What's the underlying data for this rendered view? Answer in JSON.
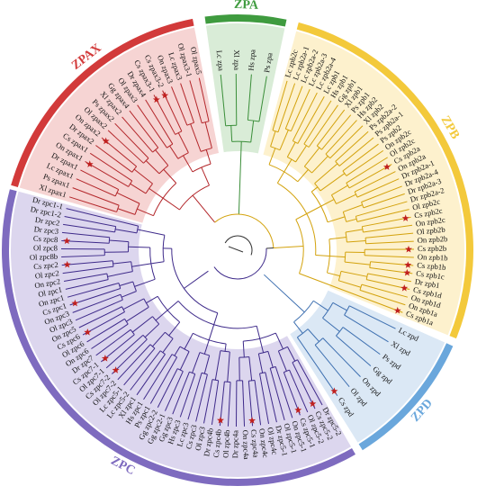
{
  "colors": {
    "ZPAX": "#d23a3a",
    "ZPA": "#3f9b3f",
    "ZPB": "#f3c93b",
    "ZPD": "#6aa7dc",
    "ZPC": "#7e6bbf",
    "ZPAX_bg": "#f6d4d3",
    "ZPA_bg": "#d9ecd7",
    "ZPB_bg": "#fdf1cd",
    "ZPD_bg": "#dbe8f5",
    "ZPC_bg": "#dcd6ee",
    "star": "#c0201f",
    "ZPAX_branch": "#b3262a",
    "ZPA_branch": "#3a8e39",
    "ZPB_branch": "#d3a20c",
    "ZPD_branch": "#3d6fb0",
    "ZPC_branch": "#3e2a8a",
    "center_branch": "#333333"
  },
  "clades": [
    {
      "key": "ZPAX",
      "label": "ZPAX"
    },
    {
      "key": "ZPA",
      "label": "ZPA"
    },
    {
      "key": "ZPB",
      "label": "ZPB"
    },
    {
      "key": "ZPD",
      "label": "ZPD"
    },
    {
      "key": "ZPC",
      "label": "ZPC"
    }
  ],
  "leaves": [
    {
      "label": "Xl zpax1",
      "clade": "ZPAX",
      "star": false
    },
    {
      "label": "Ps zpax1",
      "clade": "ZPAX",
      "star": false
    },
    {
      "label": "Lc zpax1",
      "clade": "ZPAX",
      "star": false
    },
    {
      "label": "Dr zpax1",
      "clade": "ZPAX",
      "star": false
    },
    {
      "label": "On zpax1",
      "clade": "ZPAX",
      "star": true
    },
    {
      "label": "Cs zpax1",
      "clade": "ZPAX",
      "star": false
    },
    {
      "label": "Dr zpax2",
      "clade": "ZPAX",
      "star": false
    },
    {
      "label": "On zpax2",
      "clade": "ZPAX",
      "star": true
    },
    {
      "label": "Ol zpax2",
      "clade": "ZPAX",
      "star": false
    },
    {
      "label": "Ps zpax2",
      "clade": "ZPAX",
      "star": false
    },
    {
      "label": "Xl zpax2",
      "clade": "ZPAX",
      "star": false
    },
    {
      "label": "Gg zpax4",
      "clade": "ZPAX",
      "star": false
    },
    {
      "label": "Ol zpax3",
      "clade": "ZPAX",
      "star": false
    },
    {
      "label": "Dr zpax4",
      "clade": "ZPAX",
      "star": false
    },
    {
      "label": "Cs zpax3-1",
      "clade": "ZPAX",
      "star": true
    },
    {
      "label": "Cs zpax3-2",
      "clade": "ZPAX",
      "star": true
    },
    {
      "label": "On zpax3",
      "clade": "ZPAX",
      "star": false
    },
    {
      "label": "Lc zpax3",
      "clade": "ZPAX",
      "star": false
    },
    {
      "label": "Ol zpax3-1",
      "clade": "ZPAX",
      "star": false
    },
    {
      "label": "Ol zpax5",
      "clade": "ZPAX",
      "star": false
    },
    {
      "label": "Lc zpa",
      "clade": "ZPA",
      "star": false
    },
    {
      "label": "Xl zpa",
      "clade": "ZPA",
      "star": false
    },
    {
      "label": "Hs zpa",
      "clade": "ZPA",
      "star": false
    },
    {
      "label": "Ps zpa",
      "clade": "ZPA",
      "star": false
    },
    {
      "label": "Lc zpb2c",
      "clade": "ZPB",
      "star": false
    },
    {
      "label": "Lc zpb2a-1",
      "clade": "ZPB",
      "star": false
    },
    {
      "label": "Lc zpb2a-2",
      "clade": "ZPB",
      "star": false
    },
    {
      "label": "Lc zpb2a-3",
      "clade": "ZPB",
      "star": false
    },
    {
      "label": "Lc zpb2a-4",
      "clade": "ZPB",
      "star": false
    },
    {
      "label": "Lc zpb1",
      "clade": "ZPB",
      "star": false
    },
    {
      "label": "Hs zpb1",
      "clade": "ZPB",
      "star": false
    },
    {
      "label": "Gg zpb1",
      "clade": "ZPB",
      "star": false
    },
    {
      "label": "Xl zpb1",
      "clade": "ZPB",
      "star": false
    },
    {
      "label": "Ps zpb1",
      "clade": "ZPB",
      "star": false
    },
    {
      "label": "Hs zpb2",
      "clade": "ZPB",
      "star": false
    },
    {
      "label": "Xl zpb2",
      "clade": "ZPB",
      "star": false
    },
    {
      "label": "Ps zpb2a-2",
      "clade": "ZPB",
      "star": false
    },
    {
      "label": "Ps zpb2a-1",
      "clade": "ZPB",
      "star": false
    },
    {
      "label": "Ps zpb2",
      "clade": "ZPB",
      "star": false
    },
    {
      "label": "On zpb2c",
      "clade": "ZPB",
      "star": false
    },
    {
      "label": "Ol zpb2c",
      "clade": "ZPB",
      "star": false
    },
    {
      "label": "Cs zpb2a",
      "clade": "ZPB",
      "star": true
    },
    {
      "label": "On zpb2a",
      "clade": "ZPB",
      "star": false
    },
    {
      "label": "Dr zpb2a-1",
      "clade": "ZPB",
      "star": false
    },
    {
      "label": "Dr zpb2a-4",
      "clade": "ZPB",
      "star": false
    },
    {
      "label": "Dr zpb2a-3",
      "clade": "ZPB",
      "star": false
    },
    {
      "label": "Dr zpb2a-2",
      "clade": "ZPB",
      "star": false
    },
    {
      "label": "Ol zpb2c",
      "clade": "ZPB",
      "star": false
    },
    {
      "label": "Cs zpb2c",
      "clade": "ZPB",
      "star": true
    },
    {
      "label": "On zpb2c",
      "clade": "ZPB",
      "star": false
    },
    {
      "label": "Ol zpb2b",
      "clade": "ZPB",
      "star": false
    },
    {
      "label": "On zpb2b",
      "clade": "ZPB",
      "star": false
    },
    {
      "label": "Cs zpb2b",
      "clade": "ZPB",
      "star": true
    },
    {
      "label": "On zpb1b",
      "clade": "ZPB",
      "star": false
    },
    {
      "label": "Cs zpb1b",
      "clade": "ZPB",
      "star": true
    },
    {
      "label": "Cs zpb1c",
      "clade": "ZPB",
      "star": true
    },
    {
      "label": "Dr zpb1",
      "clade": "ZPB",
      "star": false
    },
    {
      "label": "Cs zpb1d",
      "clade": "ZPB",
      "star": true
    },
    {
      "label": "On zpb1d",
      "clade": "ZPB",
      "star": false
    },
    {
      "label": "On zpb1a",
      "clade": "ZPB",
      "star": false
    },
    {
      "label": "Cs zpb1a",
      "clade": "ZPB",
      "star": true
    },
    {
      "label": "Lc zpd",
      "clade": "ZPD",
      "star": false
    },
    {
      "label": "Xl zpd",
      "clade": "ZPD",
      "star": false
    },
    {
      "label": "Ps zpd",
      "clade": "ZPD",
      "star": false
    },
    {
      "label": "Gg zpd",
      "clade": "ZPD",
      "star": false
    },
    {
      "label": "On zpd",
      "clade": "ZPD",
      "star": false
    },
    {
      "label": "Ol zpd",
      "clade": "ZPD",
      "star": false
    },
    {
      "label": "Cs zpd",
      "clade": "ZPD",
      "star": true
    },
    {
      "label": "Dr zpc5-2",
      "clade": "ZPC",
      "star": false
    },
    {
      "label": "Cs zpc5-2",
      "clade": "ZPC",
      "star": true
    },
    {
      "label": "Ol zpc5-2",
      "clade": "ZPC",
      "star": false
    },
    {
      "label": "Cs zpc5-1",
      "clade": "ZPC",
      "star": true
    },
    {
      "label": "On zpc5-1",
      "clade": "ZPC",
      "star": false
    },
    {
      "label": "Ol zpc5-1",
      "clade": "ZPC",
      "star": false
    },
    {
      "label": "Dr zpc5-1",
      "clade": "ZPC",
      "star": false
    },
    {
      "label": "Ol zpc4c",
      "clade": "ZPC",
      "star": false
    },
    {
      "label": "On zpc4c",
      "clade": "ZPC",
      "star": false
    },
    {
      "label": "Cs zpc4a",
      "clade": "ZPC",
      "star": true
    },
    {
      "label": "On zpc4a",
      "clade": "ZPC",
      "star": false
    },
    {
      "label": "Dr zpc4a",
      "clade": "ZPC",
      "star": false
    },
    {
      "label": "Ol zpc4b",
      "clade": "ZPC",
      "star": false
    },
    {
      "label": "Cs zpc4b",
      "clade": "ZPC",
      "star": true
    },
    {
      "label": "Dr zpc4b",
      "clade": "ZPC",
      "star": false
    },
    {
      "label": "Ol zpc3",
      "clade": "ZPC",
      "star": false
    },
    {
      "label": "Cs zpc3",
      "clade": "ZPC",
      "star": false
    },
    {
      "label": "Lc zpc3",
      "clade": "ZPC",
      "star": false
    },
    {
      "label": "Hs zpc3",
      "clade": "ZPC",
      "star": false
    },
    {
      "label": "Gg zpc3",
      "clade": "ZPC",
      "star": false
    },
    {
      "label": "Gg zpc2-1",
      "clade": "ZPC",
      "star": false
    },
    {
      "label": "Gg zpc2-2",
      "clade": "ZPC",
      "star": false
    },
    {
      "label": "Ps zpc1",
      "clade": "ZPC",
      "star": false
    },
    {
      "label": "Hs zpc1",
      "clade": "ZPC",
      "star": false
    },
    {
      "label": "Xl zpc1",
      "clade": "ZPC",
      "star": false
    },
    {
      "label": "Lc zpc5-2",
      "clade": "ZPC",
      "star": false
    },
    {
      "label": "Lc zpc5-1",
      "clade": "ZPC",
      "star": false
    },
    {
      "label": "Ol zpc7-2",
      "clade": "ZPC",
      "star": false
    },
    {
      "label": "Cs zpc7-2",
      "clade": "ZPC",
      "star": true
    },
    {
      "label": "Ol zpc7-1",
      "clade": "ZPC",
      "star": false
    },
    {
      "label": "Cs zpc7-1",
      "clade": "ZPC",
      "star": true
    },
    {
      "label": "Dr zpc7",
      "clade": "ZPC",
      "star": false
    },
    {
      "label": "On zpc6",
      "clade": "ZPC",
      "star": false
    },
    {
      "label": "Ol zpc6",
      "clade": "ZPC",
      "star": false
    },
    {
      "label": "Cs zpc6",
      "clade": "ZPC",
      "star": true
    },
    {
      "label": "On zpc5",
      "clade": "ZPC",
      "star": false
    },
    {
      "label": "Ol zpc3",
      "clade": "ZPC",
      "star": false
    },
    {
      "label": "On zpc3",
      "clade": "ZPC",
      "star": false
    },
    {
      "label": "Cs zpc1",
      "clade": "ZPC",
      "star": true
    },
    {
      "label": "On zpc1",
      "clade": "ZPC",
      "star": false
    },
    {
      "label": "Ol zpc1",
      "clade": "ZPC",
      "star": false
    },
    {
      "label": "On zpc2",
      "clade": "ZPC",
      "star": false
    },
    {
      "label": "Ol zpc2",
      "clade": "ZPC",
      "star": false
    },
    {
      "label": "Cs zpc2",
      "clade": "ZPC",
      "star": true
    },
    {
      "label": "Ol zpc8b",
      "clade": "ZPC",
      "star": false
    },
    {
      "label": "Ol zpc8",
      "clade": "ZPC",
      "star": false
    },
    {
      "label": "Cs zpc8",
      "clade": "ZPC",
      "star": true
    },
    {
      "label": "Dr zpc3",
      "clade": "ZPC",
      "star": false
    },
    {
      "label": "Dr zpc2",
      "clade": "ZPC",
      "star": false
    },
    {
      "label": "Dr zpc1-2",
      "clade": "ZPC",
      "star": false
    },
    {
      "label": "Dr zpc1-1",
      "clade": "ZPC",
      "star": false
    }
  ]
}
